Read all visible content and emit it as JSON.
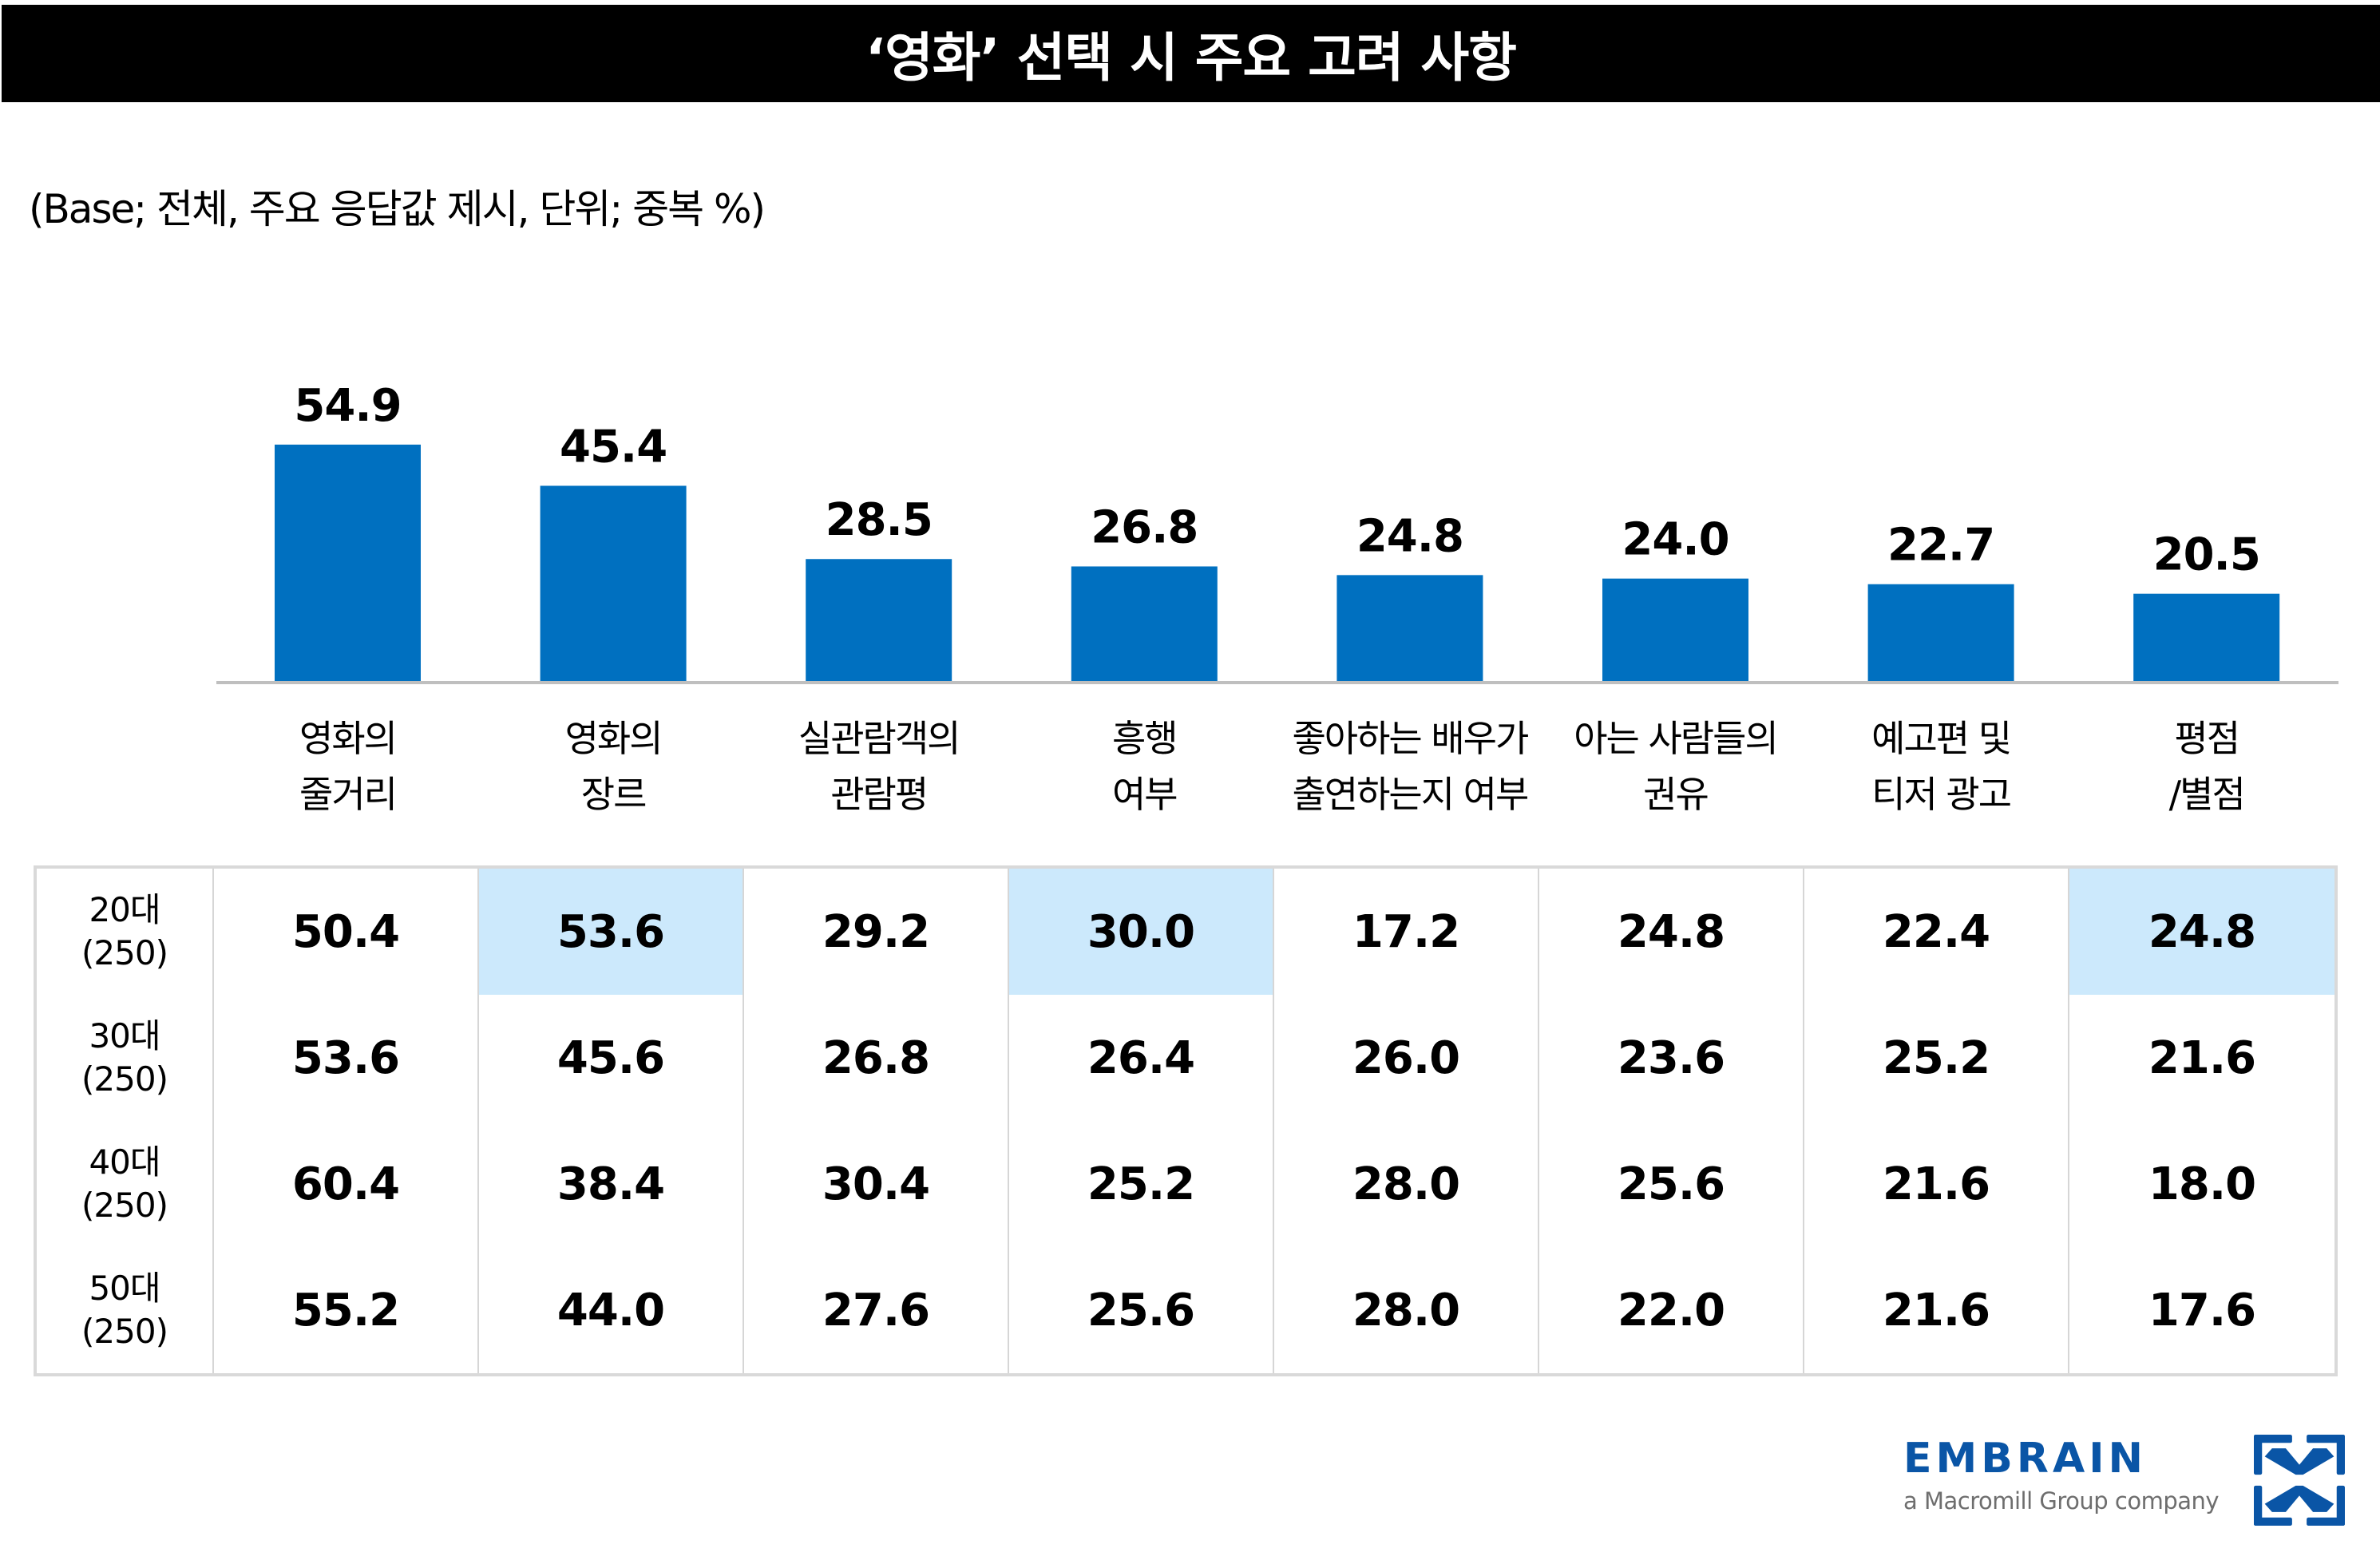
{
  "header": {
    "title": "‘영화’ 선택 시 주요 고려 사항"
  },
  "subtitle": "(Base; 전체, 주요 응답값 제시, 단위; 중복 %)",
  "colors": {
    "bar": "#0070C0",
    "highlight": "#CCE9FC",
    "axis": "#BFBFBF",
    "brand": "#0A55A6"
  },
  "chart_data": {
    "type": "bar",
    "title": "‘영화’ 선택 시 주요 고려 사항",
    "xlabel": "",
    "ylabel": "",
    "ylim": [
      0,
      60
    ],
    "grid": false,
    "categories": [
      [
        "영화의",
        "줄거리"
      ],
      [
        "영화의",
        "장르"
      ],
      [
        "실관람객의",
        "관람평"
      ],
      [
        "흥행",
        "여부"
      ],
      [
        "좋아하는 배우가",
        "출연하는지 여부"
      ],
      [
        "아는 사람들의",
        "권유"
      ],
      [
        "예고편 및",
        "티저 광고"
      ],
      [
        "평점",
        "/별점"
      ]
    ],
    "values": [
      54.9,
      45.4,
      28.5,
      26.8,
      24.8,
      24.0,
      22.7,
      20.5
    ],
    "value_labels": [
      "54.9",
      "45.4",
      "28.5",
      "26.8",
      "24.8",
      "24.0",
      "22.7",
      "20.5"
    ]
  },
  "table": {
    "rows": [
      {
        "label": [
          "20대",
          "(250)"
        ],
        "values": [
          "50.4",
          "53.6",
          "29.2",
          "30.0",
          "17.2",
          "24.8",
          "22.4",
          "24.8"
        ],
        "highlight": [
          false,
          true,
          false,
          true,
          false,
          false,
          false,
          true
        ]
      },
      {
        "label": [
          "30대",
          "(250)"
        ],
        "values": [
          "53.6",
          "45.6",
          "26.8",
          "26.4",
          "26.0",
          "23.6",
          "25.2",
          "21.6"
        ],
        "highlight": [
          false,
          false,
          false,
          false,
          false,
          false,
          false,
          false
        ]
      },
      {
        "label": [
          "40대",
          "(250)"
        ],
        "values": [
          "60.4",
          "38.4",
          "30.4",
          "25.2",
          "28.0",
          "25.6",
          "21.6",
          "18.0"
        ],
        "highlight": [
          false,
          false,
          false,
          false,
          false,
          false,
          false,
          false
        ]
      },
      {
        "label": [
          "50대",
          "(250)"
        ],
        "values": [
          "55.2",
          "44.0",
          "27.6",
          "25.6",
          "28.0",
          "22.0",
          "21.6",
          "17.6"
        ],
        "highlight": [
          false,
          false,
          false,
          false,
          false,
          false,
          false,
          false
        ]
      }
    ]
  },
  "logo": {
    "wordmark": "EMBRAIN",
    "tagline": "a Macromill Group company",
    "icon": "embrain-arrows-icon"
  }
}
